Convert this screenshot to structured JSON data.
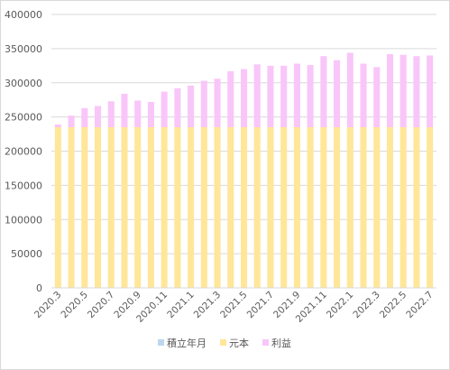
{
  "chart_data": {
    "type": "bar",
    "stacked": true,
    "title": "",
    "xlabel": "",
    "ylabel": "",
    "ylim": [
      0,
      400000
    ],
    "yticks": [
      0,
      50000,
      100000,
      150000,
      200000,
      250000,
      300000,
      350000,
      400000
    ],
    "grid": true,
    "legend_position": "bottom",
    "categories": [
      "2020.3",
      "2020.4",
      "2020.5",
      "2020.6",
      "2020.7",
      "2020.8",
      "2020.9",
      "2020.10",
      "2020.11",
      "2020.12",
      "2021.1",
      "2021.2",
      "2021.3",
      "2021.4",
      "2021.5",
      "2021.6",
      "2021.7",
      "2021.8",
      "2021.9",
      "2021.10",
      "2021.11",
      "2021.12",
      "2022.1",
      "2022.2",
      "2022.3",
      "2022.4",
      "2022.5",
      "2022.6",
      "2022.7"
    ],
    "x_tick_labels": [
      "2020.3",
      "2020.5",
      "2020.7",
      "2020.9",
      "2020.11",
      "2021.1",
      "2021.3",
      "2021.5",
      "2021.7",
      "2021.9",
      "2021.11",
      "2022.1",
      "2022.3",
      "2022.5",
      "2022.7"
    ],
    "series": [
      {
        "name": "積立年月",
        "color": "#bdd7ee",
        "values": [
          0,
          0,
          0,
          0,
          0,
          0,
          0,
          0,
          0,
          0,
          0,
          0,
          0,
          0,
          0,
          0,
          0,
          0,
          0,
          0,
          0,
          0,
          0,
          0,
          0,
          0,
          0,
          0,
          0
        ]
      },
      {
        "name": "元本",
        "color": "#ffe699",
        "values": [
          235000,
          235000,
          235000,
          235000,
          235000,
          235000,
          235000,
          235000,
          235000,
          235000,
          235000,
          235000,
          235000,
          235000,
          235000,
          235000,
          235000,
          235000,
          235000,
          235000,
          235000,
          235000,
          235000,
          235000,
          235000,
          235000,
          235000,
          235000,
          235000
        ]
      },
      {
        "name": "利益",
        "color": "#f9c6f9",
        "values": [
          4000,
          17000,
          28000,
          31000,
          38000,
          49000,
          39000,
          37000,
          52000,
          57000,
          61000,
          68000,
          71000,
          82000,
          85000,
          92000,
          90000,
          90000,
          93000,
          91000,
          104000,
          98000,
          109000,
          93000,
          88000,
          107000,
          106000,
          104000,
          105000
        ]
      }
    ]
  }
}
